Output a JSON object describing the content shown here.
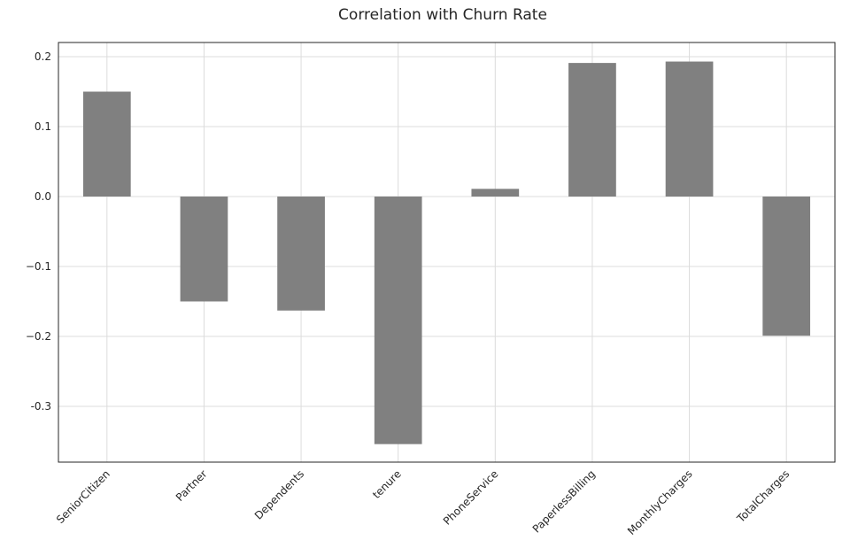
{
  "chart_data": {
    "type": "bar",
    "title": "Correlation with Churn Rate",
    "xlabel": "",
    "ylabel": "",
    "categories": [
      "SeniorCitizen",
      "Partner",
      "Dependents",
      "tenure",
      "PhoneService",
      "PaperlessBilling",
      "MonthlyCharges",
      "TotalCharges"
    ],
    "values": [
      0.15,
      -0.15,
      -0.163,
      -0.354,
      0.011,
      0.191,
      0.193,
      -0.199
    ],
    "ylim": [
      -0.38,
      0.22
    ],
    "yticks": [
      0.2,
      0.1,
      0.0,
      -0.1,
      -0.2,
      -0.3
    ],
    "ytick_labels": [
      "0.2",
      "0.1",
      "0.0",
      "−0.1",
      "−0.2",
      "-0.3"
    ],
    "grid": true,
    "bar_color": "#808080",
    "grid_color": "#dcdcdc",
    "legend": "none"
  }
}
